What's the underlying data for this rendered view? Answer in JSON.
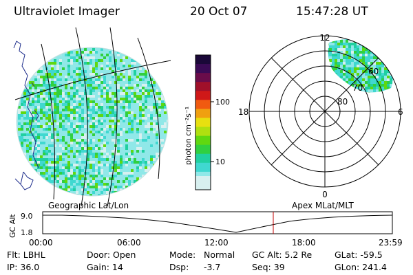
{
  "header": {
    "title": "Ultraviolet Imager",
    "date": "20 Oct 07",
    "time": "15:47:28 UT"
  },
  "colorbar": {
    "axis_label": "photon cm⁻²s⁻¹",
    "ticks": [
      "100",
      "10"
    ],
    "colors": [
      "#1a0838",
      "#3a0a55",
      "#6a0c4a",
      "#a0102a",
      "#d01818",
      "#f05a10",
      "#f0a010",
      "#e8e010",
      "#b0e010",
      "#60d810",
      "#30d040",
      "#20d0a0",
      "#40d8d0",
      "#90e8e8",
      "#d8f0f0"
    ]
  },
  "left_map": {
    "label": "Geographic Lat/Lon"
  },
  "right_map": {
    "label": "Apex MLat/MLT",
    "mlt_labels": {
      "top": "12",
      "left": "18",
      "right": "6",
      "bottom": "0"
    },
    "lat_labels": [
      "60",
      "70",
      "80"
    ]
  },
  "altitude_plot": {
    "ylabel": "GC Alt",
    "yticks": [
      "9.0",
      "1.8"
    ],
    "xticks": [
      "00:00",
      "06:00",
      "12:00",
      "18:00",
      "23:59"
    ],
    "marker_color": "#c00000"
  },
  "footer": {
    "flt": "Flt: LBHL",
    "ip": "IP: 36.0",
    "door": "Door: Open",
    "gain": "Gain: 14",
    "mode_label": "Mode:",
    "mode_value": "Normal",
    "dsp_label": "Dsp:",
    "dsp_value": "-3.7",
    "gc_alt": "GC Alt: 5.2 Re",
    "seq": "Seq: 39",
    "glat": "GLat: -59.5",
    "glon": "GLon: 241.4"
  }
}
